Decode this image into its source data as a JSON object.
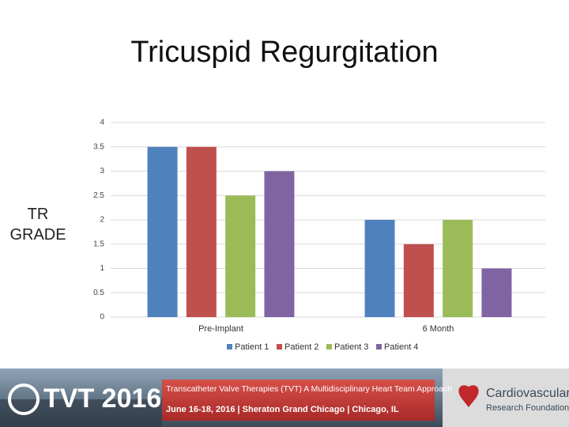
{
  "chart_data": {
    "type": "bar",
    "title": "Tricuspid Regurgitation",
    "y_label": "TR GRADE",
    "categories": [
      "Pre-Implant",
      "6 Month"
    ],
    "series": [
      {
        "name": "Patient 1",
        "color": "#4f81bd",
        "values": [
          3.5,
          2
        ]
      },
      {
        "name": "Patient 2",
        "color": "#c0504d",
        "values": [
          3.5,
          1.5
        ]
      },
      {
        "name": "Patient 3",
        "color": "#9bbb59",
        "values": [
          2.5,
          2
        ]
      },
      {
        "name": "Patient 4",
        "color": "#8064a2",
        "values": [
          3,
          1
        ]
      }
    ],
    "ylim": [
      0,
      4
    ],
    "yticks": [
      0,
      0.5,
      1,
      1.5,
      2,
      2.5,
      3,
      3.5,
      4
    ],
    "grid": true,
    "legend": "bottom"
  },
  "footer": {
    "event": "TVT 2016",
    "headline": "Transcatheter Valve Therapies (TVT) A Multidisciplinary Heart Team Approach",
    "details": "June 16-18, 2016 | Sheraton Grand Chicago | Chicago, IL",
    "org_line1": "Cardiovascular",
    "org_line2": "Research Foundation"
  }
}
